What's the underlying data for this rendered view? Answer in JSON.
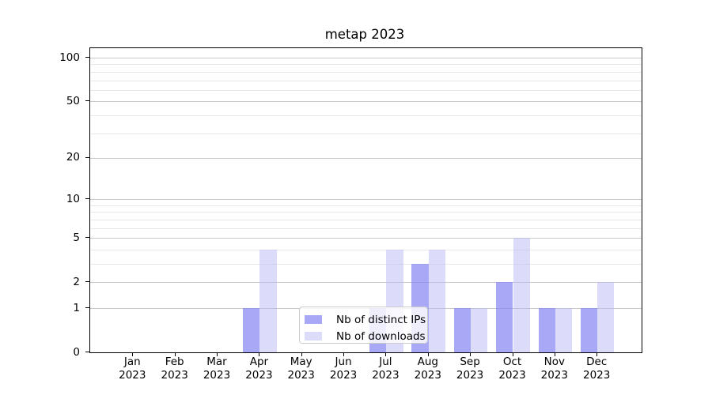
{
  "title": "metap 2023",
  "chart_data": {
    "type": "bar",
    "title": "metap 2023",
    "categories": [
      "Jan 2023",
      "Feb 2023",
      "Mar 2023",
      "Apr 2023",
      "May 2023",
      "Jun 2023",
      "Jul 2023",
      "Aug 2023",
      "Sep 2023",
      "Oct 2023",
      "Nov 2023",
      "Dec 2023"
    ],
    "series": [
      {
        "name": "Nb of distinct IPs",
        "color": "rgba(134,134,242,0.72)",
        "values": [
          0,
          0,
          0,
          1,
          0,
          0,
          1,
          3,
          1,
          2,
          1,
          1
        ]
      },
      {
        "name": "Nb of downloads",
        "color": "rgba(185,185,246,0.5)",
        "values": [
          0,
          0,
          0,
          4,
          0,
          0,
          4,
          4,
          1,
          5,
          1,
          2
        ]
      }
    ],
    "yscale": "symlog (log1p)",
    "ylim": [
      0,
      116
    ],
    "ytick_values": [
      0,
      1,
      2,
      5,
      10,
      20,
      50,
      100
    ],
    "ytick_labels": [
      "0",
      "1",
      "2",
      "5",
      "10",
      "20",
      "50",
      "100"
    ],
    "minor_gridline_values": [
      3,
      4,
      6,
      7,
      8,
      9,
      30,
      40,
      60,
      70,
      80,
      90
    ],
    "grid": true,
    "legend_position": "lower center",
    "xlabel": "",
    "ylabel": ""
  },
  "colors": {
    "grid_major": "#c9c9c9",
    "grid_minor": "#e8e8e8",
    "spine": "#000000",
    "figure_background": "#ffffff"
  }
}
